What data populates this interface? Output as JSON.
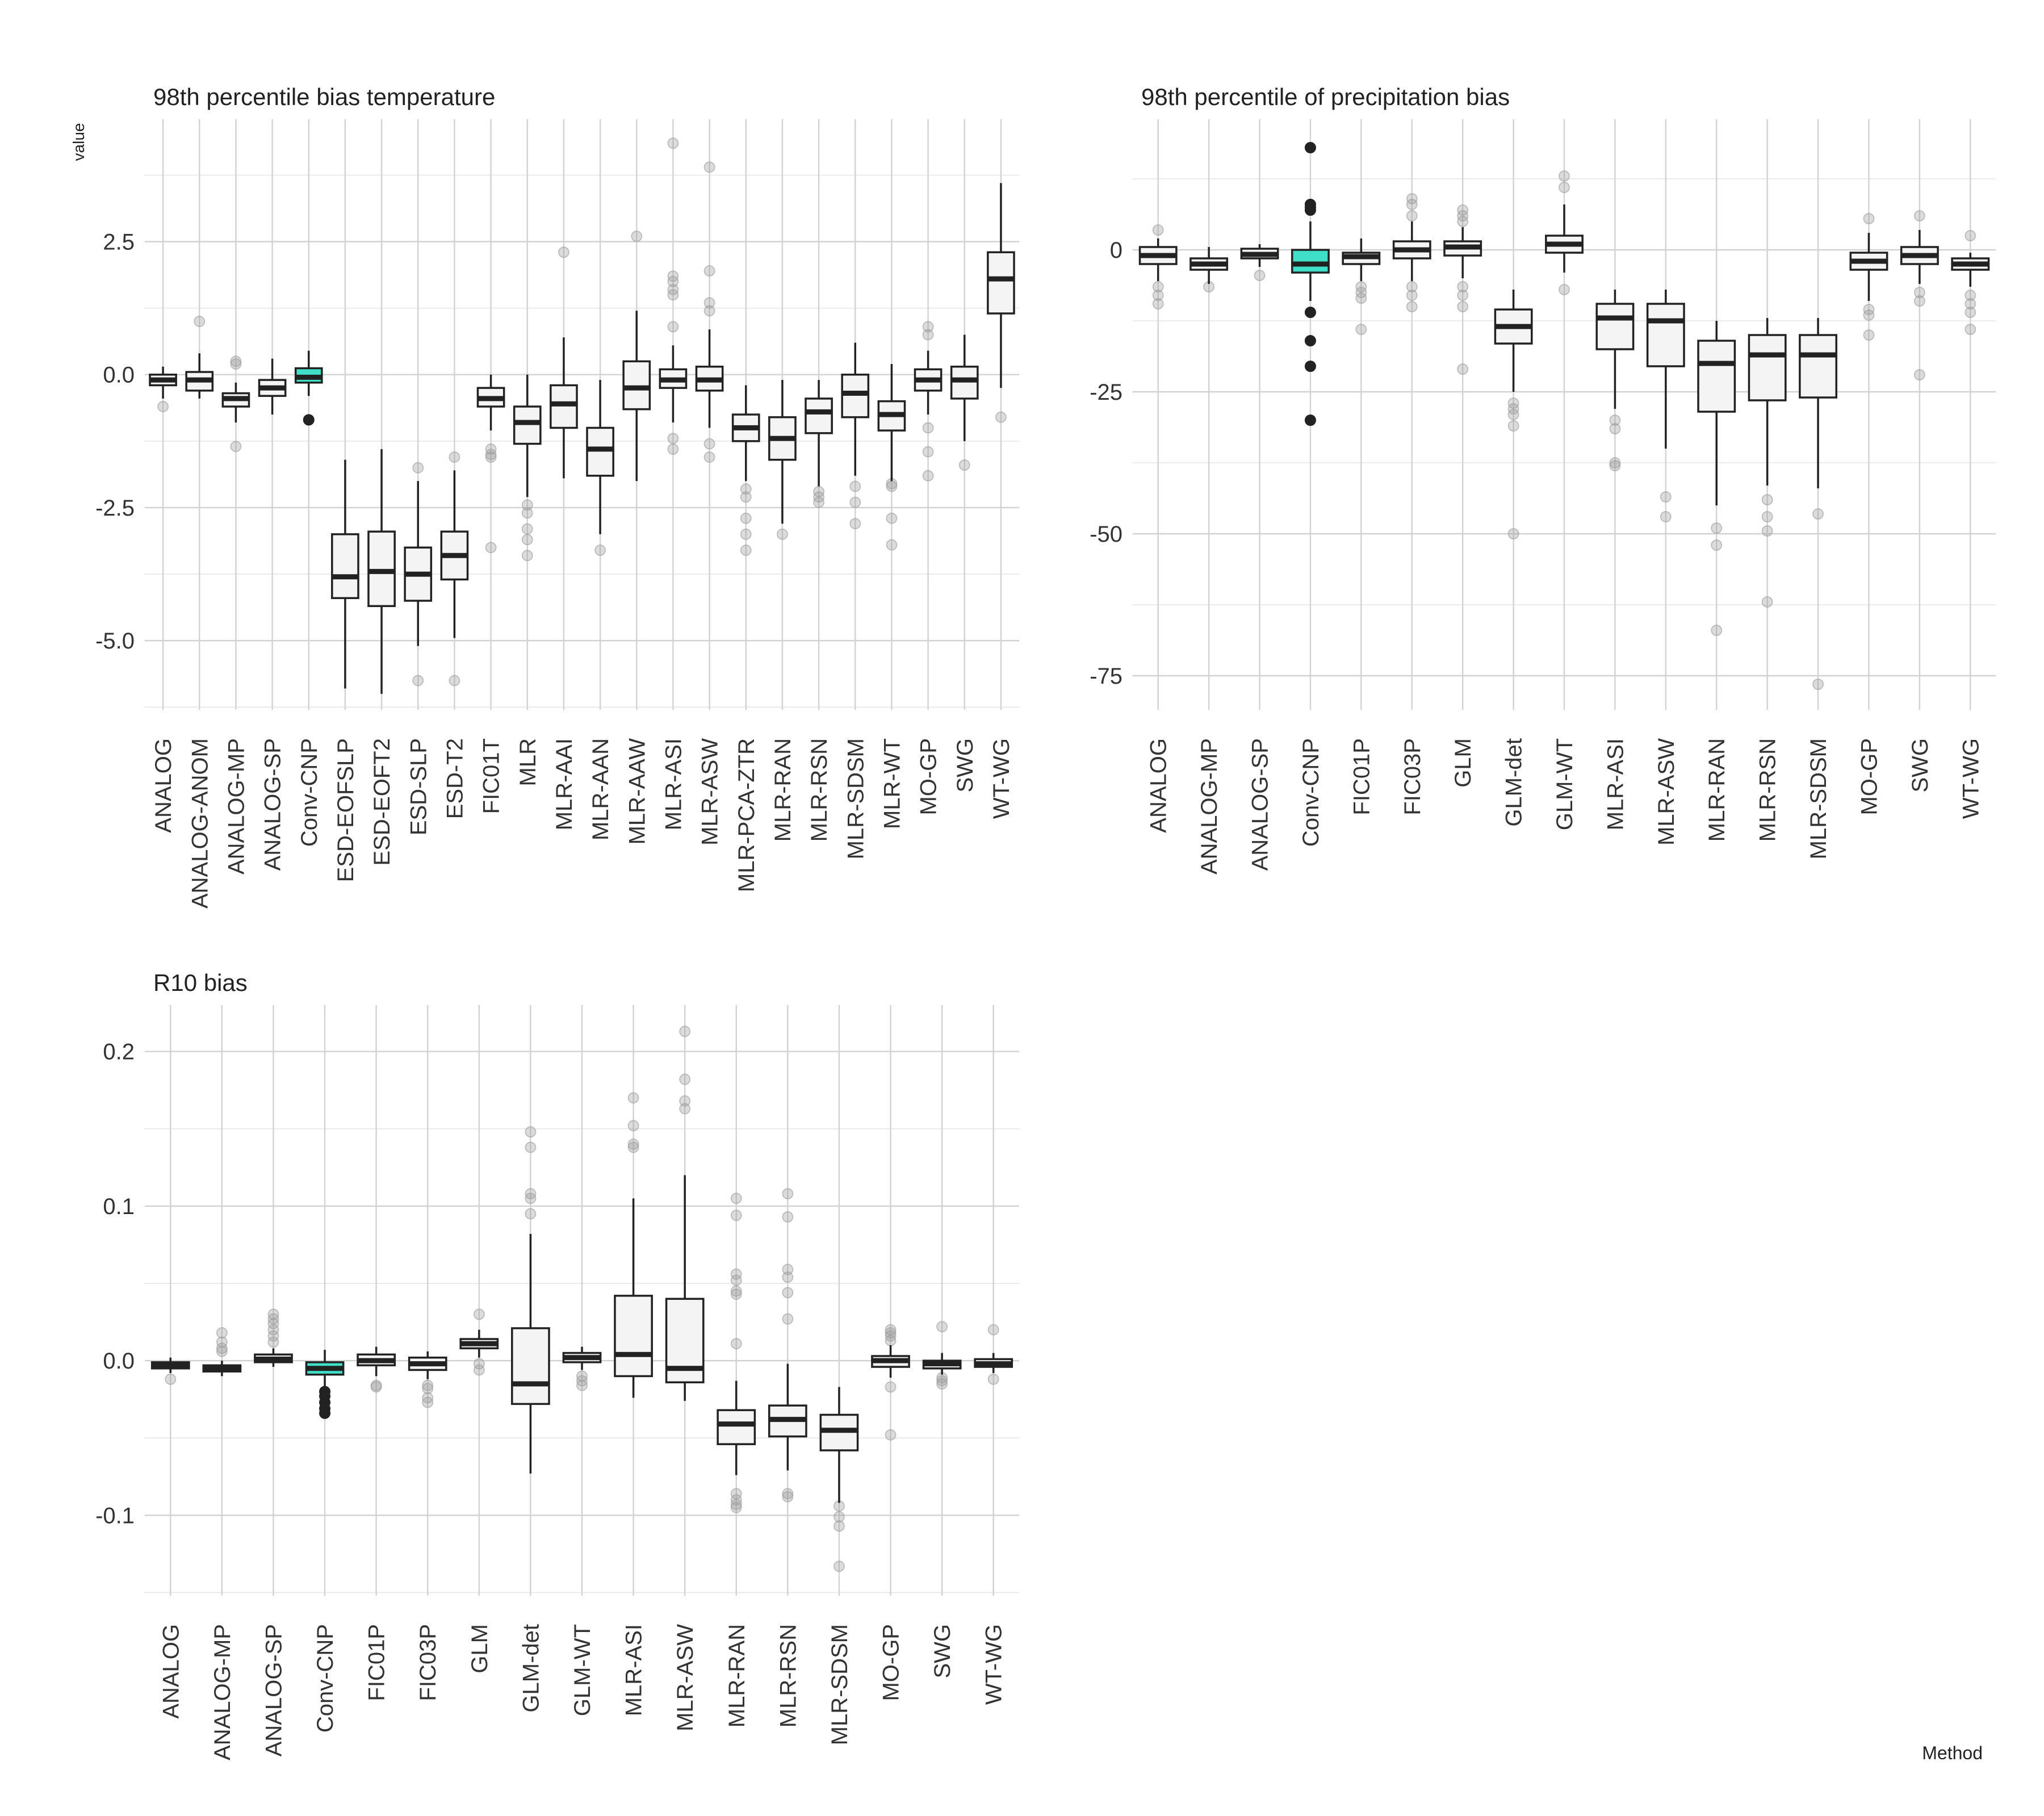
{
  "global": {
    "ylabel": "value",
    "xlabel": "Method"
  },
  "colors": {
    "highlight": "#40e0c8",
    "box_fill": "#f4f4f4",
    "outlier": "#9a9a9a",
    "outlier_dark": "#222222",
    "stroke": "#222222"
  },
  "chart_data": [
    {
      "type": "boxplot",
      "title": "98th percentile bias temperature",
      "ylim": [
        -6.3,
        4.8
      ],
      "yticks": [
        -5.0,
        -2.5,
        0.0,
        2.5
      ],
      "ytick_labels": [
        "-5.0",
        "-2.5",
        "0.0",
        "2.5"
      ],
      "highlight": "Conv-CNP",
      "categories": [
        "ANALOG",
        "ANALOG-ANOM",
        "ANALOG-MP",
        "ANALOG-SP",
        "Conv-CNP",
        "ESD-EOFSLP",
        "ESD-EOFT2",
        "ESD-SLP",
        "ESD-T2",
        "FIC01T",
        "MLR",
        "MLR-AAI",
        "MLR-AAN",
        "MLR-AAW",
        "MLR-ASI",
        "MLR-ASW",
        "MLR-PCA-ZTR",
        "MLR-RAN",
        "MLR-RSN",
        "MLR-SDSM",
        "MLR-WT",
        "MO-GP",
        "SWG",
        "WT-WG"
      ],
      "boxes": [
        {
          "q1": -0.2,
          "median": -0.1,
          "q3": 0.0,
          "lo": -0.45,
          "hi": 0.15,
          "outliers": [
            -0.6
          ]
        },
        {
          "q1": -0.3,
          "median": -0.1,
          "q3": 0.05,
          "lo": -0.45,
          "hi": 0.4,
          "outliers": [
            1.0
          ]
        },
        {
          "q1": -0.6,
          "median": -0.45,
          "q3": -0.35,
          "lo": -0.9,
          "hi": -0.15,
          "outliers": [
            0.2,
            0.25,
            -1.35
          ]
        },
        {
          "q1": -0.4,
          "median": -0.25,
          "q3": -0.1,
          "lo": -0.75,
          "hi": 0.3,
          "outliers": []
        },
        {
          "q1": -0.15,
          "median": -0.05,
          "q3": 0.12,
          "lo": -0.4,
          "hi": 0.45,
          "outliers": [
            -0.85
          ]
        },
        {
          "q1": -4.2,
          "median": -3.8,
          "q3": -3.0,
          "lo": -5.9,
          "hi": -1.6,
          "outliers": []
        },
        {
          "q1": -4.35,
          "median": -3.7,
          "q3": -2.95,
          "lo": -6.0,
          "hi": -1.4,
          "outliers": []
        },
        {
          "q1": -4.25,
          "median": -3.75,
          "q3": -3.25,
          "lo": -5.1,
          "hi": -2.0,
          "outliers": [
            -1.75,
            -5.75
          ]
        },
        {
          "q1": -3.85,
          "median": -3.4,
          "q3": -2.95,
          "lo": -4.95,
          "hi": -1.8,
          "outliers": [
            -1.55,
            -5.75
          ]
        },
        {
          "q1": -0.6,
          "median": -0.45,
          "q3": -0.25,
          "lo": -1.05,
          "hi": 0.0,
          "outliers": [
            -1.4,
            -1.5,
            -1.55,
            -3.25
          ]
        },
        {
          "q1": -1.3,
          "median": -0.9,
          "q3": -0.6,
          "lo": -2.3,
          "hi": 0.0,
          "outliers": [
            -2.45,
            -2.6,
            -2.9,
            -3.1,
            -3.4
          ]
        },
        {
          "q1": -1.0,
          "median": -0.55,
          "q3": -0.2,
          "lo": -1.95,
          "hi": 0.7,
          "outliers": [
            2.3
          ]
        },
        {
          "q1": -1.9,
          "median": -1.4,
          "q3": -1.0,
          "lo": -3.0,
          "hi": -0.1,
          "outliers": [
            -3.3
          ]
        },
        {
          "q1": -0.65,
          "median": -0.25,
          "q3": 0.25,
          "lo": -2.0,
          "hi": 1.2,
          "outliers": [
            2.6
          ]
        },
        {
          "q1": -0.25,
          "median": -0.1,
          "q3": 0.1,
          "lo": -0.9,
          "hi": 0.55,
          "outliers": [
            0.9,
            1.5,
            1.6,
            1.75,
            1.85,
            -1.2,
            -1.4,
            4.35
          ]
        },
        {
          "q1": -0.3,
          "median": -0.1,
          "q3": 0.15,
          "lo": -1.0,
          "hi": 0.85,
          "outliers": [
            1.2,
            1.35,
            1.95,
            3.9,
            -1.3,
            -1.55
          ]
        },
        {
          "q1": -1.25,
          "median": -1.0,
          "q3": -0.75,
          "lo": -2.0,
          "hi": -0.2,
          "outliers": [
            -2.15,
            -2.3,
            -2.7,
            -3.0,
            -3.3
          ]
        },
        {
          "q1": -1.6,
          "median": -1.2,
          "q3": -0.8,
          "lo": -2.8,
          "hi": -0.1,
          "outliers": [
            -3.0
          ]
        },
        {
          "q1": -1.1,
          "median": -0.7,
          "q3": -0.45,
          "lo": -2.1,
          "hi": -0.1,
          "outliers": [
            -2.2,
            -2.3,
            -2.4
          ]
        },
        {
          "q1": -0.8,
          "median": -0.35,
          "q3": 0.0,
          "lo": -1.9,
          "hi": 0.6,
          "outliers": [
            -2.1,
            -2.4,
            -2.8
          ]
        },
        {
          "q1": -1.05,
          "median": -0.75,
          "q3": -0.5,
          "lo": -2.0,
          "hi": 0.2,
          "outliers": [
            -2.05,
            -2.1,
            -2.7,
            -3.2
          ]
        },
        {
          "q1": -0.3,
          "median": -0.1,
          "q3": 0.1,
          "lo": -0.75,
          "hi": 0.45,
          "outliers": [
            0.75,
            0.9,
            -1.0,
            -1.45,
            -1.9
          ]
        },
        {
          "q1": -0.45,
          "median": -0.1,
          "q3": 0.15,
          "lo": -1.25,
          "hi": 0.75,
          "outliers": [
            -1.7
          ]
        },
        {
          "q1": 1.15,
          "median": 1.8,
          "q3": 2.3,
          "lo": -0.25,
          "hi": 3.6,
          "outliers": [
            -0.8
          ]
        }
      ]
    },
    {
      "type": "boxplot",
      "title": "98th percentile of precipitation bias",
      "ylim": [
        -81,
        23
      ],
      "yticks": [
        -75,
        -50,
        -25,
        0
      ],
      "ytick_labels": [
        "-75",
        "-50",
        "-25",
        "0"
      ],
      "highlight": "Conv-CNP",
      "categories": [
        "ANALOG",
        "ANALOG-MP",
        "ANALOG-SP",
        "Conv-CNP",
        "FIC01P",
        "FIC03P",
        "GLM",
        "GLM-det",
        "GLM-WT",
        "MLR-ASI",
        "MLR-ASW",
        "MLR-RAN",
        "MLR-RSN",
        "MLR-SDSM",
        "MO-GP",
        "SWG",
        "WT-WG"
      ],
      "boxes": [
        {
          "q1": -2.5,
          "median": -1.0,
          "q3": 0.5,
          "lo": -5.5,
          "hi": 2.0,
          "outliers": [
            3.5,
            -6.5,
            -8.0,
            -9.5
          ]
        },
        {
          "q1": -3.5,
          "median": -2.5,
          "q3": -1.5,
          "lo": -6.0,
          "hi": 0.5,
          "outliers": [
            -6.5
          ]
        },
        {
          "q1": -1.5,
          "median": -0.8,
          "q3": 0.2,
          "lo": -3.0,
          "hi": 1.0,
          "outliers": [
            -4.5
          ]
        },
        {
          "q1": -4.0,
          "median": -2.5,
          "q3": 0.0,
          "lo": -9.0,
          "hi": 5.0,
          "outliers": [
            7.0,
            7.5,
            8.0,
            18.0,
            -11.0,
            -16.0,
            -20.5,
            -30.0
          ]
        },
        {
          "q1": -2.5,
          "median": -1.2,
          "q3": -0.5,
          "lo": -5.5,
          "hi": 2.0,
          "outliers": [
            -6.5,
            -7.5,
            -8.5,
            -14.0
          ]
        },
        {
          "q1": -1.5,
          "median": 0.0,
          "q3": 1.5,
          "lo": -5.5,
          "hi": 5.0,
          "outliers": [
            6.0,
            8.0,
            9.0,
            -6.5,
            -8.0,
            -10.0
          ]
        },
        {
          "q1": -1.0,
          "median": 0.5,
          "q3": 1.5,
          "lo": -5.0,
          "hi": 4.0,
          "outliers": [
            5.0,
            6.0,
            7.0,
            -6.5,
            -8.0,
            -10.0,
            -21.0
          ]
        },
        {
          "q1": -16.5,
          "median": -13.5,
          "q3": -10.5,
          "lo": -25.0,
          "hi": -7.0,
          "outliers": [
            -27.0,
            -28.0,
            -29.0,
            -31.0,
            -50.0
          ]
        },
        {
          "q1": -0.5,
          "median": 1.0,
          "q3": 2.5,
          "lo": -4.0,
          "hi": 8.0,
          "outliers": [
            11.0,
            13.0,
            -7.0
          ]
        },
        {
          "q1": -17.5,
          "median": -12.0,
          "q3": -9.5,
          "lo": -28.0,
          "hi": -7.0,
          "outliers": [
            -30.0,
            -31.5,
            -37.5,
            -38.0
          ]
        },
        {
          "q1": -20.5,
          "median": -12.5,
          "q3": -9.5,
          "lo": -35.0,
          "hi": -7.0,
          "outliers": [
            -43.5,
            -47.0
          ]
        },
        {
          "q1": -28.5,
          "median": -20.0,
          "q3": -16.0,
          "lo": -45.0,
          "hi": -12.5,
          "outliers": [
            -49.0,
            -52.0,
            -67.0
          ]
        },
        {
          "q1": -26.5,
          "median": -18.5,
          "q3": -15.0,
          "lo": -41.5,
          "hi": -12.0,
          "outliers": [
            -44.0,
            -47.0,
            -49.5,
            -62.0
          ]
        },
        {
          "q1": -26.0,
          "median": -18.5,
          "q3": -15.0,
          "lo": -42.0,
          "hi": -12.0,
          "outliers": [
            -46.5,
            -76.5
          ]
        },
        {
          "q1": -3.5,
          "median": -2.0,
          "q3": -0.5,
          "lo": -9.0,
          "hi": 3.0,
          "outliers": [
            5.5,
            -10.5,
            -11.5,
            -15.0
          ]
        },
        {
          "q1": -2.5,
          "median": -1.0,
          "q3": 0.5,
          "lo": -6.0,
          "hi": 3.5,
          "outliers": [
            6.0,
            -7.5,
            -9.0,
            -22.0
          ]
        },
        {
          "q1": -3.5,
          "median": -2.5,
          "q3": -1.5,
          "lo": -6.5,
          "hi": -0.5,
          "outliers": [
            2.5,
            -8.0,
            -9.5,
            -11.0,
            -14.0
          ]
        }
      ]
    },
    {
      "type": "boxplot",
      "title": "R10 bias",
      "ylim": [
        -0.152,
        0.23
      ],
      "yticks": [
        -0.1,
        0.0,
        0.1,
        0.2
      ],
      "ytick_labels": [
        "-0.1",
        "0.0",
        "0.1",
        "0.2"
      ],
      "highlight": "Conv-CNP",
      "categories": [
        "ANALOG",
        "ANALOG-MP",
        "ANALOG-SP",
        "Conv-CNP",
        "FIC01P",
        "FIC03P",
        "GLM",
        "GLM-det",
        "GLM-WT",
        "MLR-ASI",
        "MLR-ASW",
        "MLR-RAN",
        "MLR-RSN",
        "MLR-SDSM",
        "MO-GP",
        "SWG",
        "WT-WG"
      ],
      "boxes": [
        {
          "q1": -0.005,
          "median": -0.003,
          "q3": -0.001,
          "lo": -0.008,
          "hi": 0.002,
          "outliers": [
            -0.012
          ]
        },
        {
          "q1": -0.007,
          "median": -0.005,
          "q3": -0.003,
          "lo": -0.01,
          "hi": 0.0,
          "outliers": [
            0.006,
            0.008,
            0.012,
            0.018
          ]
        },
        {
          "q1": -0.001,
          "median": 0.001,
          "q3": 0.004,
          "lo": -0.004,
          "hi": 0.008,
          "outliers": [
            0.012,
            0.016,
            0.02,
            0.024,
            0.027,
            0.03
          ]
        },
        {
          "q1": -0.009,
          "median": -0.005,
          "q3": -0.001,
          "lo": -0.017,
          "hi": 0.007,
          "outliers": [
            -0.02,
            -0.023,
            -0.027,
            -0.031,
            -0.034
          ]
        },
        {
          "q1": -0.003,
          "median": 0.0,
          "q3": 0.004,
          "lo": -0.01,
          "hi": 0.009,
          "outliers": [
            -0.016,
            -0.017
          ]
        },
        {
          "q1": -0.006,
          "median": -0.002,
          "q3": 0.002,
          "lo": -0.012,
          "hi": 0.006,
          "outliers": [
            -0.016,
            -0.018,
            -0.024,
            -0.027
          ]
        },
        {
          "q1": 0.008,
          "median": 0.011,
          "q3": 0.014,
          "lo": 0.002,
          "hi": 0.02,
          "outliers": [
            0.03,
            -0.002,
            -0.006
          ]
        },
        {
          "q1": -0.028,
          "median": -0.015,
          "q3": 0.021,
          "lo": -0.073,
          "hi": 0.082,
          "outliers": [
            0.095,
            0.105,
            0.108,
            0.138,
            0.148
          ]
        },
        {
          "q1": -0.001,
          "median": 0.002,
          "q3": 0.005,
          "lo": -0.006,
          "hi": 0.009,
          "outliers": [
            -0.01,
            -0.013,
            -0.016
          ]
        },
        {
          "q1": -0.01,
          "median": 0.004,
          "q3": 0.042,
          "lo": -0.024,
          "hi": 0.105,
          "outliers": [
            0.138,
            0.14,
            0.152,
            0.17
          ]
        },
        {
          "q1": -0.014,
          "median": -0.005,
          "q3": 0.04,
          "lo": -0.026,
          "hi": 0.12,
          "outliers": [
            0.163,
            0.168,
            0.182,
            0.213
          ]
        },
        {
          "q1": -0.054,
          "median": -0.041,
          "q3": -0.032,
          "lo": -0.074,
          "hi": -0.013,
          "outliers": [
            0.011,
            0.043,
            0.045,
            0.052,
            0.056,
            0.094,
            0.105,
            -0.086,
            -0.09,
            -0.093,
            -0.095
          ]
        },
        {
          "q1": -0.049,
          "median": -0.038,
          "q3": -0.029,
          "lo": -0.071,
          "hi": -0.002,
          "outliers": [
            0.027,
            0.044,
            0.054,
            0.059,
            0.093,
            0.108,
            -0.086,
            -0.088
          ]
        },
        {
          "q1": -0.058,
          "median": -0.045,
          "q3": -0.035,
          "lo": -0.092,
          "hi": -0.017,
          "outliers": [
            -0.094,
            -0.101,
            -0.107,
            -0.133
          ]
        },
        {
          "q1": -0.004,
          "median": 0.0,
          "q3": 0.003,
          "lo": -0.011,
          "hi": 0.01,
          "outliers": [
            0.013,
            0.016,
            0.018,
            0.02,
            -0.017,
            -0.048
          ]
        },
        {
          "q1": -0.005,
          "median": -0.002,
          "q3": 0.0,
          "lo": -0.009,
          "hi": 0.005,
          "outliers": [
            0.022,
            -0.011,
            -0.013,
            -0.015
          ]
        },
        {
          "q1": -0.004,
          "median": -0.002,
          "q3": 0.001,
          "lo": -0.008,
          "hi": 0.005,
          "outliers": [
            0.02,
            -0.012
          ]
        }
      ]
    }
  ]
}
